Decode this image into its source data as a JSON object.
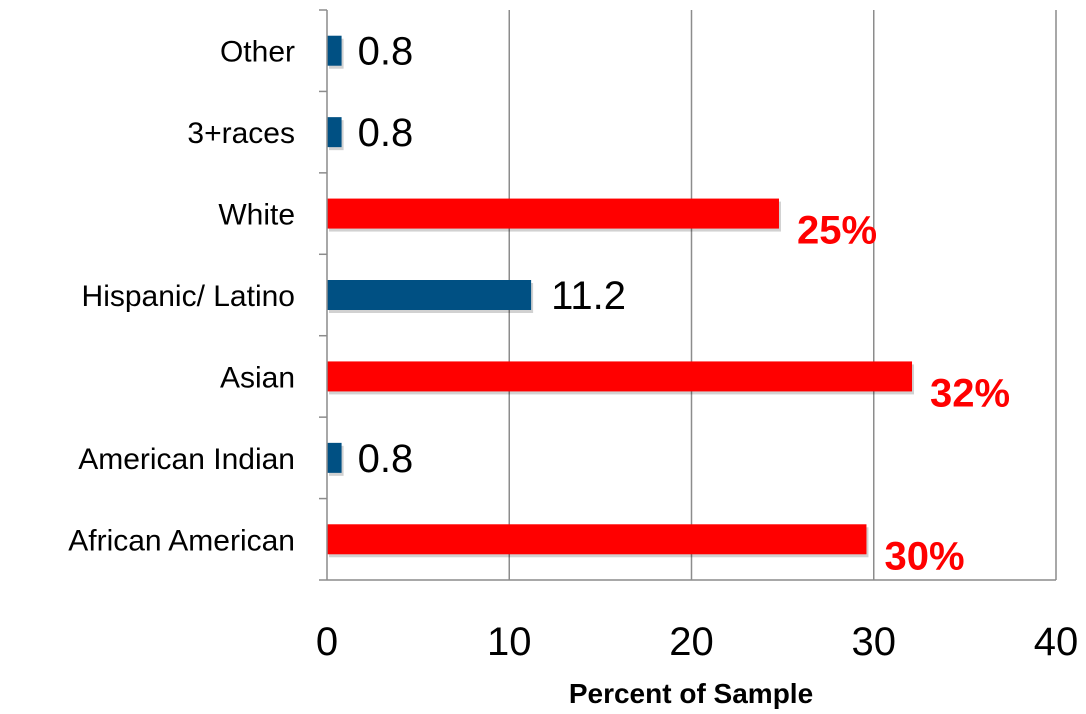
{
  "chart_data": {
    "type": "bar",
    "orientation": "horizontal",
    "categories": [
      "African American",
      "American Indian",
      "Asian",
      "Hispanic/ Latino",
      "White",
      "3+races",
      "Other"
    ],
    "values": [
      29.6,
      0.8,
      32.1,
      11.2,
      24.8,
      0.8,
      0.8
    ],
    "data_labels": [
      "30%",
      "0.8",
      "32%",
      "11.2",
      "25%",
      "0.8",
      "0.8"
    ],
    "highlighted": [
      true,
      false,
      true,
      false,
      true,
      false,
      false
    ],
    "xlabel": "Percent of Sample",
    "ylabel": "",
    "title": "",
    "xlim": [
      0,
      40
    ],
    "xticks": [
      0,
      10,
      20,
      30,
      40
    ],
    "xtick_labels": [
      "0",
      "10",
      "20",
      "30",
      "40"
    ],
    "grid": "vertical",
    "legend": "none",
    "colors": {
      "bar_default": "#005083",
      "bar_highlight": "#ff0000",
      "label_highlight": "#ff0000",
      "gridline": "#8c8c8c",
      "axis": "#8c8c8c"
    }
  }
}
